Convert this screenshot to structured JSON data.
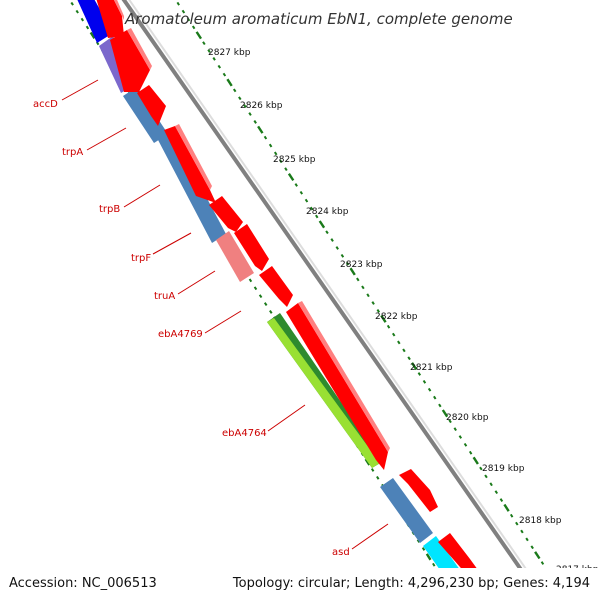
{
  "title": "Aromatoleum aromaticum EbN1, complete genome",
  "footer": {
    "accession": "Accession: NC_006513",
    "topology": "Topology: circular; Length: 4,296,230 bp; Genes: 4,194"
  },
  "ruler_ticks": [
    "2827 kbp",
    "2826 kbp",
    "2825 kbp",
    "2824 kbp",
    "2823 kbp",
    "2822 kbp",
    "2821 kbp",
    "2820 kbp",
    "2819 kbp",
    "2818 kbp",
    "2817 kbp"
  ],
  "gene_labels": [
    "accD",
    "trpA",
    "trpB",
    "trpF",
    "truA",
    "ebA4769",
    "ebA4764",
    "asd"
  ],
  "colors": {
    "forward_cds": "#ff0000",
    "reverse_cds": "#4d82b8",
    "accD": "#7b68cc",
    "truA": "#f08080",
    "ebA4764_dark": "#2e8b2e",
    "ebA4764_light": "#99e033",
    "asd_neighbor": "#00e5ff",
    "first_gene": "#0000ee",
    "tick": "#1a7a1a",
    "backbone": "#808080",
    "label": "#cc0000"
  }
}
